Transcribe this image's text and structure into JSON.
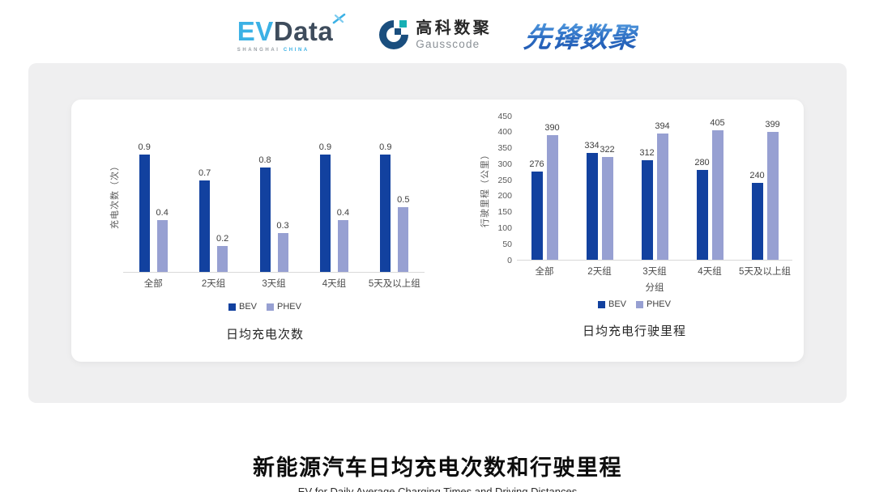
{
  "header": {
    "evdata_logo": {
      "ev": "EV",
      "data": "Data",
      "sub_shanghai": "SHANGHAI",
      "sub_china": "CHINA"
    },
    "gausscode_logo": {
      "name_cn": "高科数聚",
      "name_en": "Gausscode"
    },
    "xianfeng_logo": {
      "text": "先锋数聚"
    }
  },
  "colors": {
    "bev": "#12419F",
    "phev": "#97A0D2",
    "panel_bg": "#EFEFF0",
    "card_bg": "#FFFFFF",
    "baseline": "#D9D9D9",
    "evdata_blue": "#3BB1E5",
    "evdata_dark": "#3E4C5C",
    "gauss_navy": "#1A4E7E",
    "gauss_teal": "#16AFB4"
  },
  "chart_data": [
    {
      "type": "bar",
      "title": "日均充电次数",
      "categories": [
        "全部",
        "2天组",
        "3天组",
        "4天组",
        "5天及以上组"
      ],
      "series": [
        {
          "name": "BEV",
          "color": "#12419F",
          "values": [
            0.9,
            0.7,
            0.8,
            0.9,
            0.9
          ]
        },
        {
          "name": "PHEV",
          "color": "#97A0D2",
          "values": [
            0.4,
            0.2,
            0.3,
            0.4,
            0.5
          ]
        }
      ],
      "xlabel": "",
      "ylabel": "充电次数（次）",
      "ylim": [
        0,
        1.2
      ],
      "yticks": [],
      "grid": false,
      "data_labels": true,
      "legend_position": "bottom"
    },
    {
      "type": "bar",
      "title": "日均充电行驶里程",
      "categories": [
        "全部",
        "2天组",
        "3天组",
        "4天组",
        "5天及以上组"
      ],
      "series": [
        {
          "name": "BEV",
          "color": "#12419F",
          "values": [
            276,
            334,
            312,
            280,
            240
          ]
        },
        {
          "name": "PHEV",
          "color": "#97A0D2",
          "values": [
            390,
            322,
            394,
            405,
            399
          ]
        }
      ],
      "xlabel": "分组",
      "ylabel": "行驶里程（公里）",
      "ylim": [
        0,
        450
      ],
      "yticks": [
        0,
        50,
        100,
        150,
        200,
        250,
        300,
        350,
        400,
        450
      ],
      "grid": false,
      "data_labels": true,
      "legend_position": "bottom"
    }
  ],
  "footer": {
    "title": "新能源汽车日均充电次数和行驶里程",
    "subtitle": "EV for Daily Average Charging Times and Driving Distances"
  }
}
